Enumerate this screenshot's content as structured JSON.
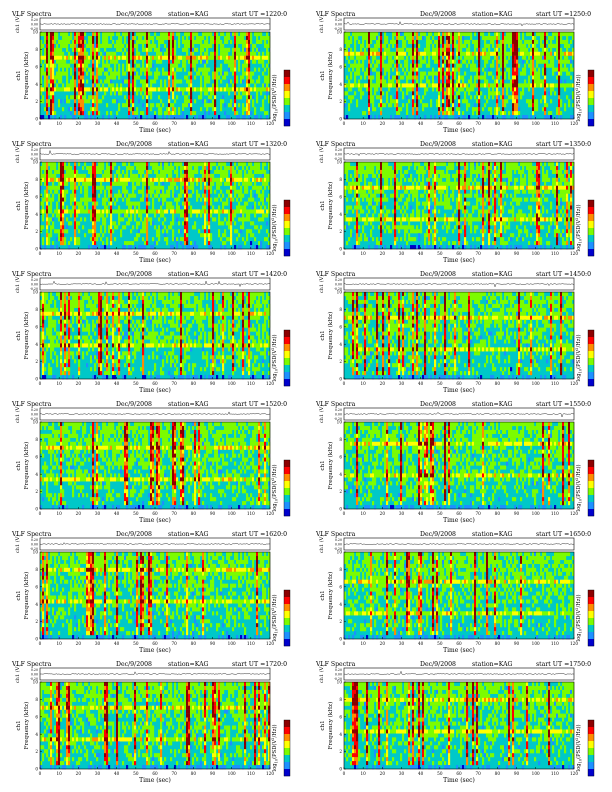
{
  "chart_defaults": {
    "title_left": "VLF Spectra",
    "date": "Dec/9/2008",
    "station": "station=KAG",
    "start_label": "start  UT =",
    "waveform_ylabel": "ch1 (V)",
    "waveform_ticks": [
      "0.20",
      "0.00",
      "-0.20"
    ],
    "waveform_ylim": [
      -0.2,
      0.2
    ],
    "spectrogram_ylabel_ch": "ch1",
    "spectrogram_ylabel": "Frequency (kHz)",
    "freq_ticks": [
      0,
      2,
      4,
      6,
      8,
      10
    ],
    "freq_ylim": [
      0,
      10
    ],
    "time_ticks": [
      0,
      10,
      20,
      30,
      40,
      50,
      60,
      70,
      80,
      90,
      100,
      110,
      120
    ],
    "time_xlim": [
      0,
      120
    ],
    "xlabel": "Time (sec)",
    "colorbar_label": "log10(PSD(V^2/Hz))",
    "colorbar_label_main": "log",
    "colorbar_label_sub": "10",
    "colorbar_label_rest": "(PSD(V",
    "colorbar_label_sup": "2",
    "colorbar_label_end": "/Hz))",
    "colorbar_colors": [
      "#8b0000",
      "#ff0000",
      "#ff8c00",
      "#ffff00",
      "#7cfc00",
      "#00c8c8",
      "#1e90ff",
      "#0000cd"
    ]
  },
  "chart_data": [
    {
      "type": "heatmap",
      "start_ut": "1220:0",
      "column": "left",
      "row": 0,
      "seed": 11
    },
    {
      "type": "heatmap",
      "start_ut": "1250:0",
      "column": "right",
      "row": 0,
      "seed": 23
    },
    {
      "type": "heatmap",
      "start_ut": "1320:0",
      "column": "left",
      "row": 1,
      "seed": 37
    },
    {
      "type": "heatmap",
      "start_ut": "1350:0",
      "column": "right",
      "row": 1,
      "seed": 41
    },
    {
      "type": "heatmap",
      "start_ut": "1420:0",
      "column": "left",
      "row": 2,
      "seed": 53
    },
    {
      "type": "heatmap",
      "start_ut": "1450:0",
      "column": "right",
      "row": 2,
      "seed": 67
    },
    {
      "type": "heatmap",
      "start_ut": "1520:0",
      "column": "left",
      "row": 3,
      "seed": 71
    },
    {
      "type": "heatmap",
      "start_ut": "1550:0",
      "column": "right",
      "row": 3,
      "seed": 83
    },
    {
      "type": "heatmap",
      "start_ut": "1620:0",
      "column": "left",
      "row": 4,
      "seed": 97
    },
    {
      "type": "heatmap",
      "start_ut": "1650:0",
      "column": "right",
      "row": 4,
      "seed": 101
    },
    {
      "type": "heatmap",
      "start_ut": "1720:0",
      "column": "left",
      "row": 5,
      "seed": 113
    },
    {
      "type": "heatmap",
      "start_ut": "1750:0",
      "column": "right",
      "row": 5,
      "seed": 127
    }
  ]
}
